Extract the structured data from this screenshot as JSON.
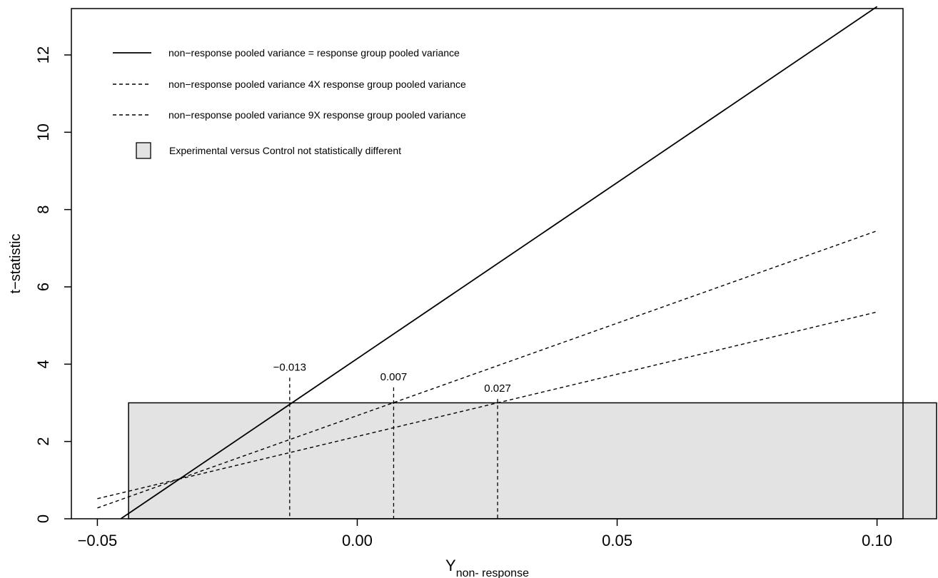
{
  "chart_data": {
    "type": "line",
    "title": "",
    "xlabel": "Y",
    "xlabel_subscript": "non- response",
    "ylabel": "t−statistic",
    "xlim": [
      -0.055,
      0.105
    ],
    "ylim": [
      0,
      13.2
    ],
    "x_ticks": [
      -0.05,
      0.0,
      0.05,
      0.1
    ],
    "x_tick_labels": [
      "−0.05",
      "0.00",
      "0.05",
      "0.10"
    ],
    "y_ticks": [
      0,
      2,
      4,
      6,
      8,
      10,
      12
    ],
    "y_tick_labels": [
      "0",
      "2",
      "4",
      "6",
      "8",
      "10",
      "12"
    ],
    "series": [
      {
        "name": "non−response pooled variance = response group pooled variance",
        "dash": "solid",
        "x": [
          -0.0455,
          0.1
        ],
        "y": [
          0.0,
          13.25
        ]
      },
      {
        "name": "non−response pooled variance 4X response group pooled variance",
        "dash": "dashed",
        "x": [
          -0.05,
          0.1
        ],
        "y": [
          0.28,
          7.45
        ]
      },
      {
        "name": "non−response pooled variance 9X response group pooled variance",
        "dash": "dashed",
        "x": [
          -0.05,
          0.1
        ],
        "y": [
          0.52,
          5.35
        ]
      }
    ],
    "shaded_region": {
      "label": "Experimental versus Control not statistically different",
      "x_start": -0.044,
      "y_min": 0,
      "y_max": 3.0,
      "color": "#e3e3e3"
    },
    "annotations": [
      {
        "x": -0.013,
        "y": 3.0,
        "label": "−0.013",
        "top_y": 3.65
      },
      {
        "x": 0.007,
        "y": 3.0,
        "label": "0.007",
        "top_y": 3.4
      },
      {
        "x": 0.027,
        "y": 3.0,
        "label": "0.027",
        "top_y": 3.1
      }
    ],
    "legend_position": "top-left",
    "colors": {
      "line": "#000000",
      "shade": "#e3e3e3"
    }
  }
}
